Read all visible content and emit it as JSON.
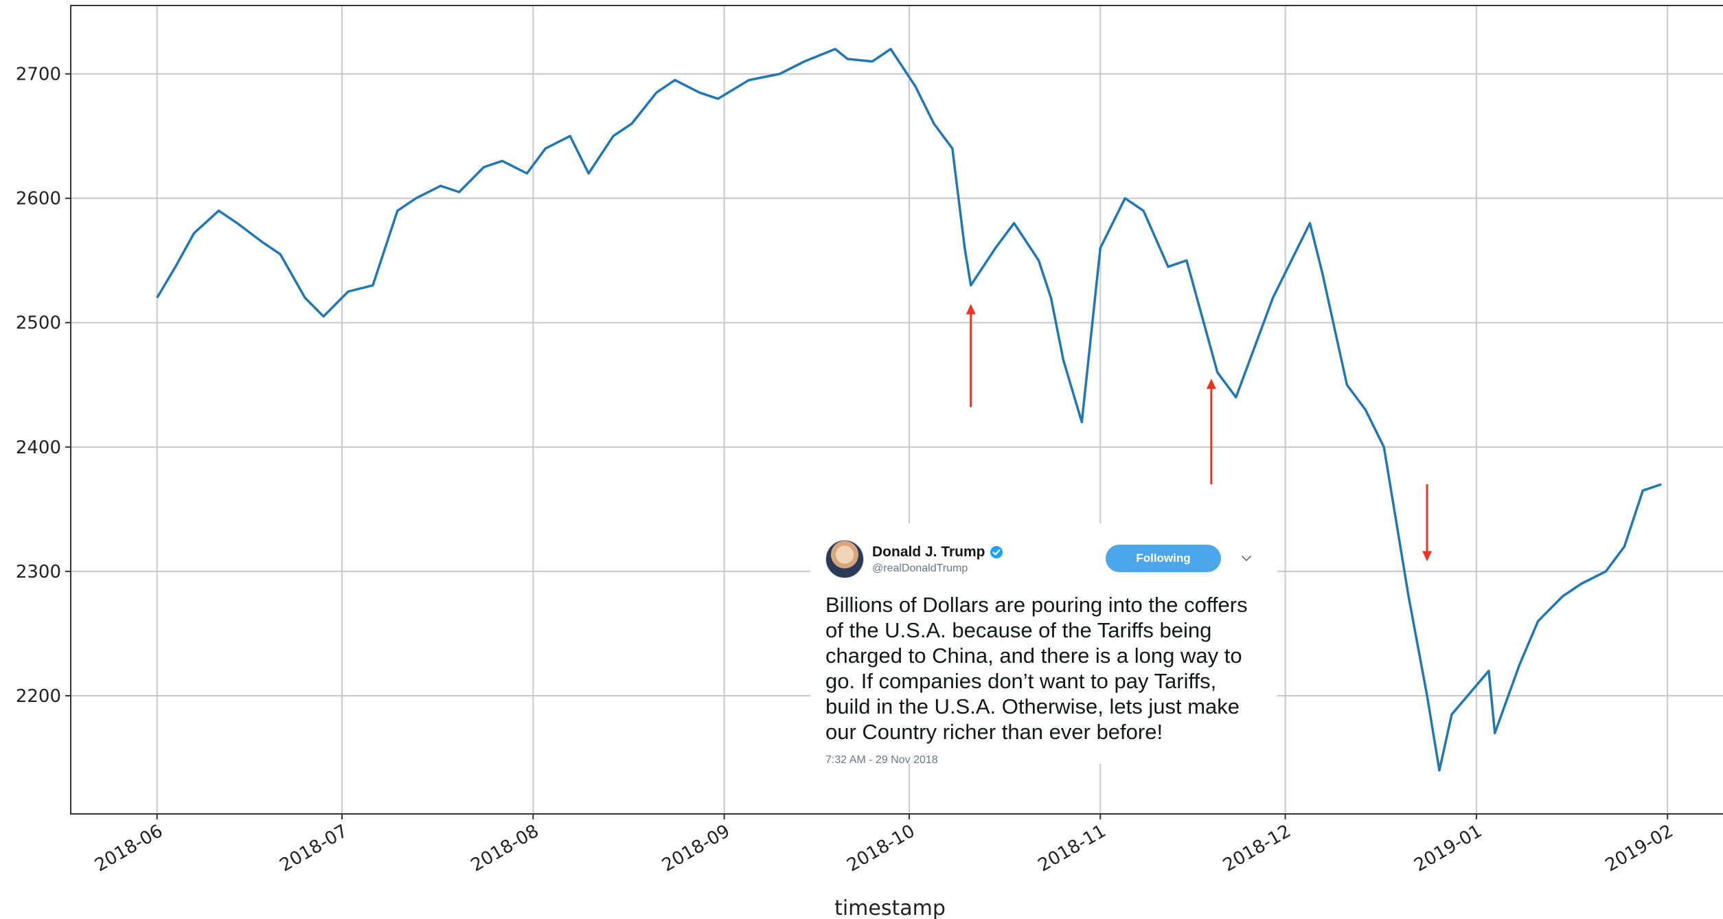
{
  "chart_data": {
    "type": "line",
    "title": "",
    "xlabel": "timestamp",
    "ylabel": "",
    "x_ticks": [
      "2018-06",
      "2018-07",
      "2018-08",
      "2018-09",
      "2018-10",
      "2018-11",
      "2018-12",
      "2019-01",
      "2019-02"
    ],
    "y_ticks": [
      2200,
      2300,
      2400,
      2500,
      2600,
      2700
    ],
    "xlim": [
      "2018-05-18",
      "2019-02-10"
    ],
    "ylim": [
      2105,
      2755
    ],
    "grid": true,
    "line_color": "#1f77b4",
    "series": [
      {
        "x": [
          "2018-06-01",
          "2018-06-04",
          "2018-06-07",
          "2018-06-11",
          "2018-06-14",
          "2018-06-18",
          "2018-06-21",
          "2018-06-25",
          "2018-06-28",
          "2018-07-02",
          "2018-07-06",
          "2018-07-10",
          "2018-07-13",
          "2018-07-17",
          "2018-07-20",
          "2018-07-24",
          "2018-07-27",
          "2018-07-31",
          "2018-08-03",
          "2018-08-07",
          "2018-08-10",
          "2018-08-14",
          "2018-08-17",
          "2018-08-21",
          "2018-08-24",
          "2018-08-28",
          "2018-08-31",
          "2018-09-05",
          "2018-09-10",
          "2018-09-14",
          "2018-09-19",
          "2018-09-21",
          "2018-09-25",
          "2018-09-28",
          "2018-10-02",
          "2018-10-05",
          "2018-10-08",
          "2018-10-10",
          "2018-10-11",
          "2018-10-15",
          "2018-10-18",
          "2018-10-22",
          "2018-10-24",
          "2018-10-26",
          "2018-10-29",
          "2018-11-01",
          "2018-11-05",
          "2018-11-08",
          "2018-11-12",
          "2018-11-15",
          "2018-11-20",
          "2018-11-23",
          "2018-11-26",
          "2018-11-29",
          "2018-12-03",
          "2018-12-05",
          "2018-12-07",
          "2018-12-11",
          "2018-12-14",
          "2018-12-17",
          "2018-12-19",
          "2018-12-21",
          "2018-12-24",
          "2018-12-26",
          "2018-12-28",
          "2019-01-03",
          "2019-01-04",
          "2019-01-08",
          "2019-01-11",
          "2019-01-15",
          "2019-01-18",
          "2019-01-22",
          "2019-01-25",
          "2019-01-28",
          "2019-01-31"
        ],
        "values": [
          2520,
          2545,
          2572,
          2590,
          2580,
          2565,
          2555,
          2520,
          2505,
          2525,
          2530,
          2590,
          2600,
          2610,
          2605,
          2625,
          2630,
          2620,
          2640,
          2650,
          2620,
          2650,
          2660,
          2685,
          2695,
          2685,
          2680,
          2695,
          2700,
          2710,
          2720,
          2712,
          2710,
          2720,
          2690,
          2660,
          2640,
          2560,
          2530,
          2560,
          2580,
          2550,
          2520,
          2470,
          2420,
          2560,
          2600,
          2590,
          2545,
          2550,
          2460,
          2440,
          2480,
          2520,
          2560,
          2580,
          2540,
          2450,
          2430,
          2400,
          2340,
          2280,
          2200,
          2140,
          2185,
          2220,
          2170,
          2225,
          2260,
          2280,
          2290,
          2300,
          2320,
          2365,
          2370
        ]
      }
    ],
    "annotations": [
      {
        "type": "arrow",
        "x": "2018-10-11",
        "direction": "up",
        "from_y": 2432,
        "to_y": 2515,
        "color": "#e8371e"
      },
      {
        "type": "arrow",
        "x": "2018-11-19",
        "direction": "up",
        "from_y": 2370,
        "to_y": 2455,
        "color": "#e8371e"
      },
      {
        "type": "arrow",
        "x": "2018-12-24",
        "direction": "down",
        "from_y": 2370,
        "to_y": 2308,
        "color": "#e8371e"
      }
    ]
  },
  "tweet": {
    "name": "Donald J. Trump",
    "handle": "@realDonaldTrump",
    "follow_label": "Following",
    "text": "Billions of Dollars are pouring into the coffers\nof the U.S.A. because of the Tariffs being\ncharged to China, and there is a long way to\ngo. If companies don’t want to pay Tariffs,\nbuild in the U.S.A. Otherwise, lets just make\nour Country richer than ever before!",
    "timestamp": "7:32 AM - 29 Nov 2018",
    "verified_color": "#1da1f2",
    "button_color": "#4ca6ea"
  }
}
